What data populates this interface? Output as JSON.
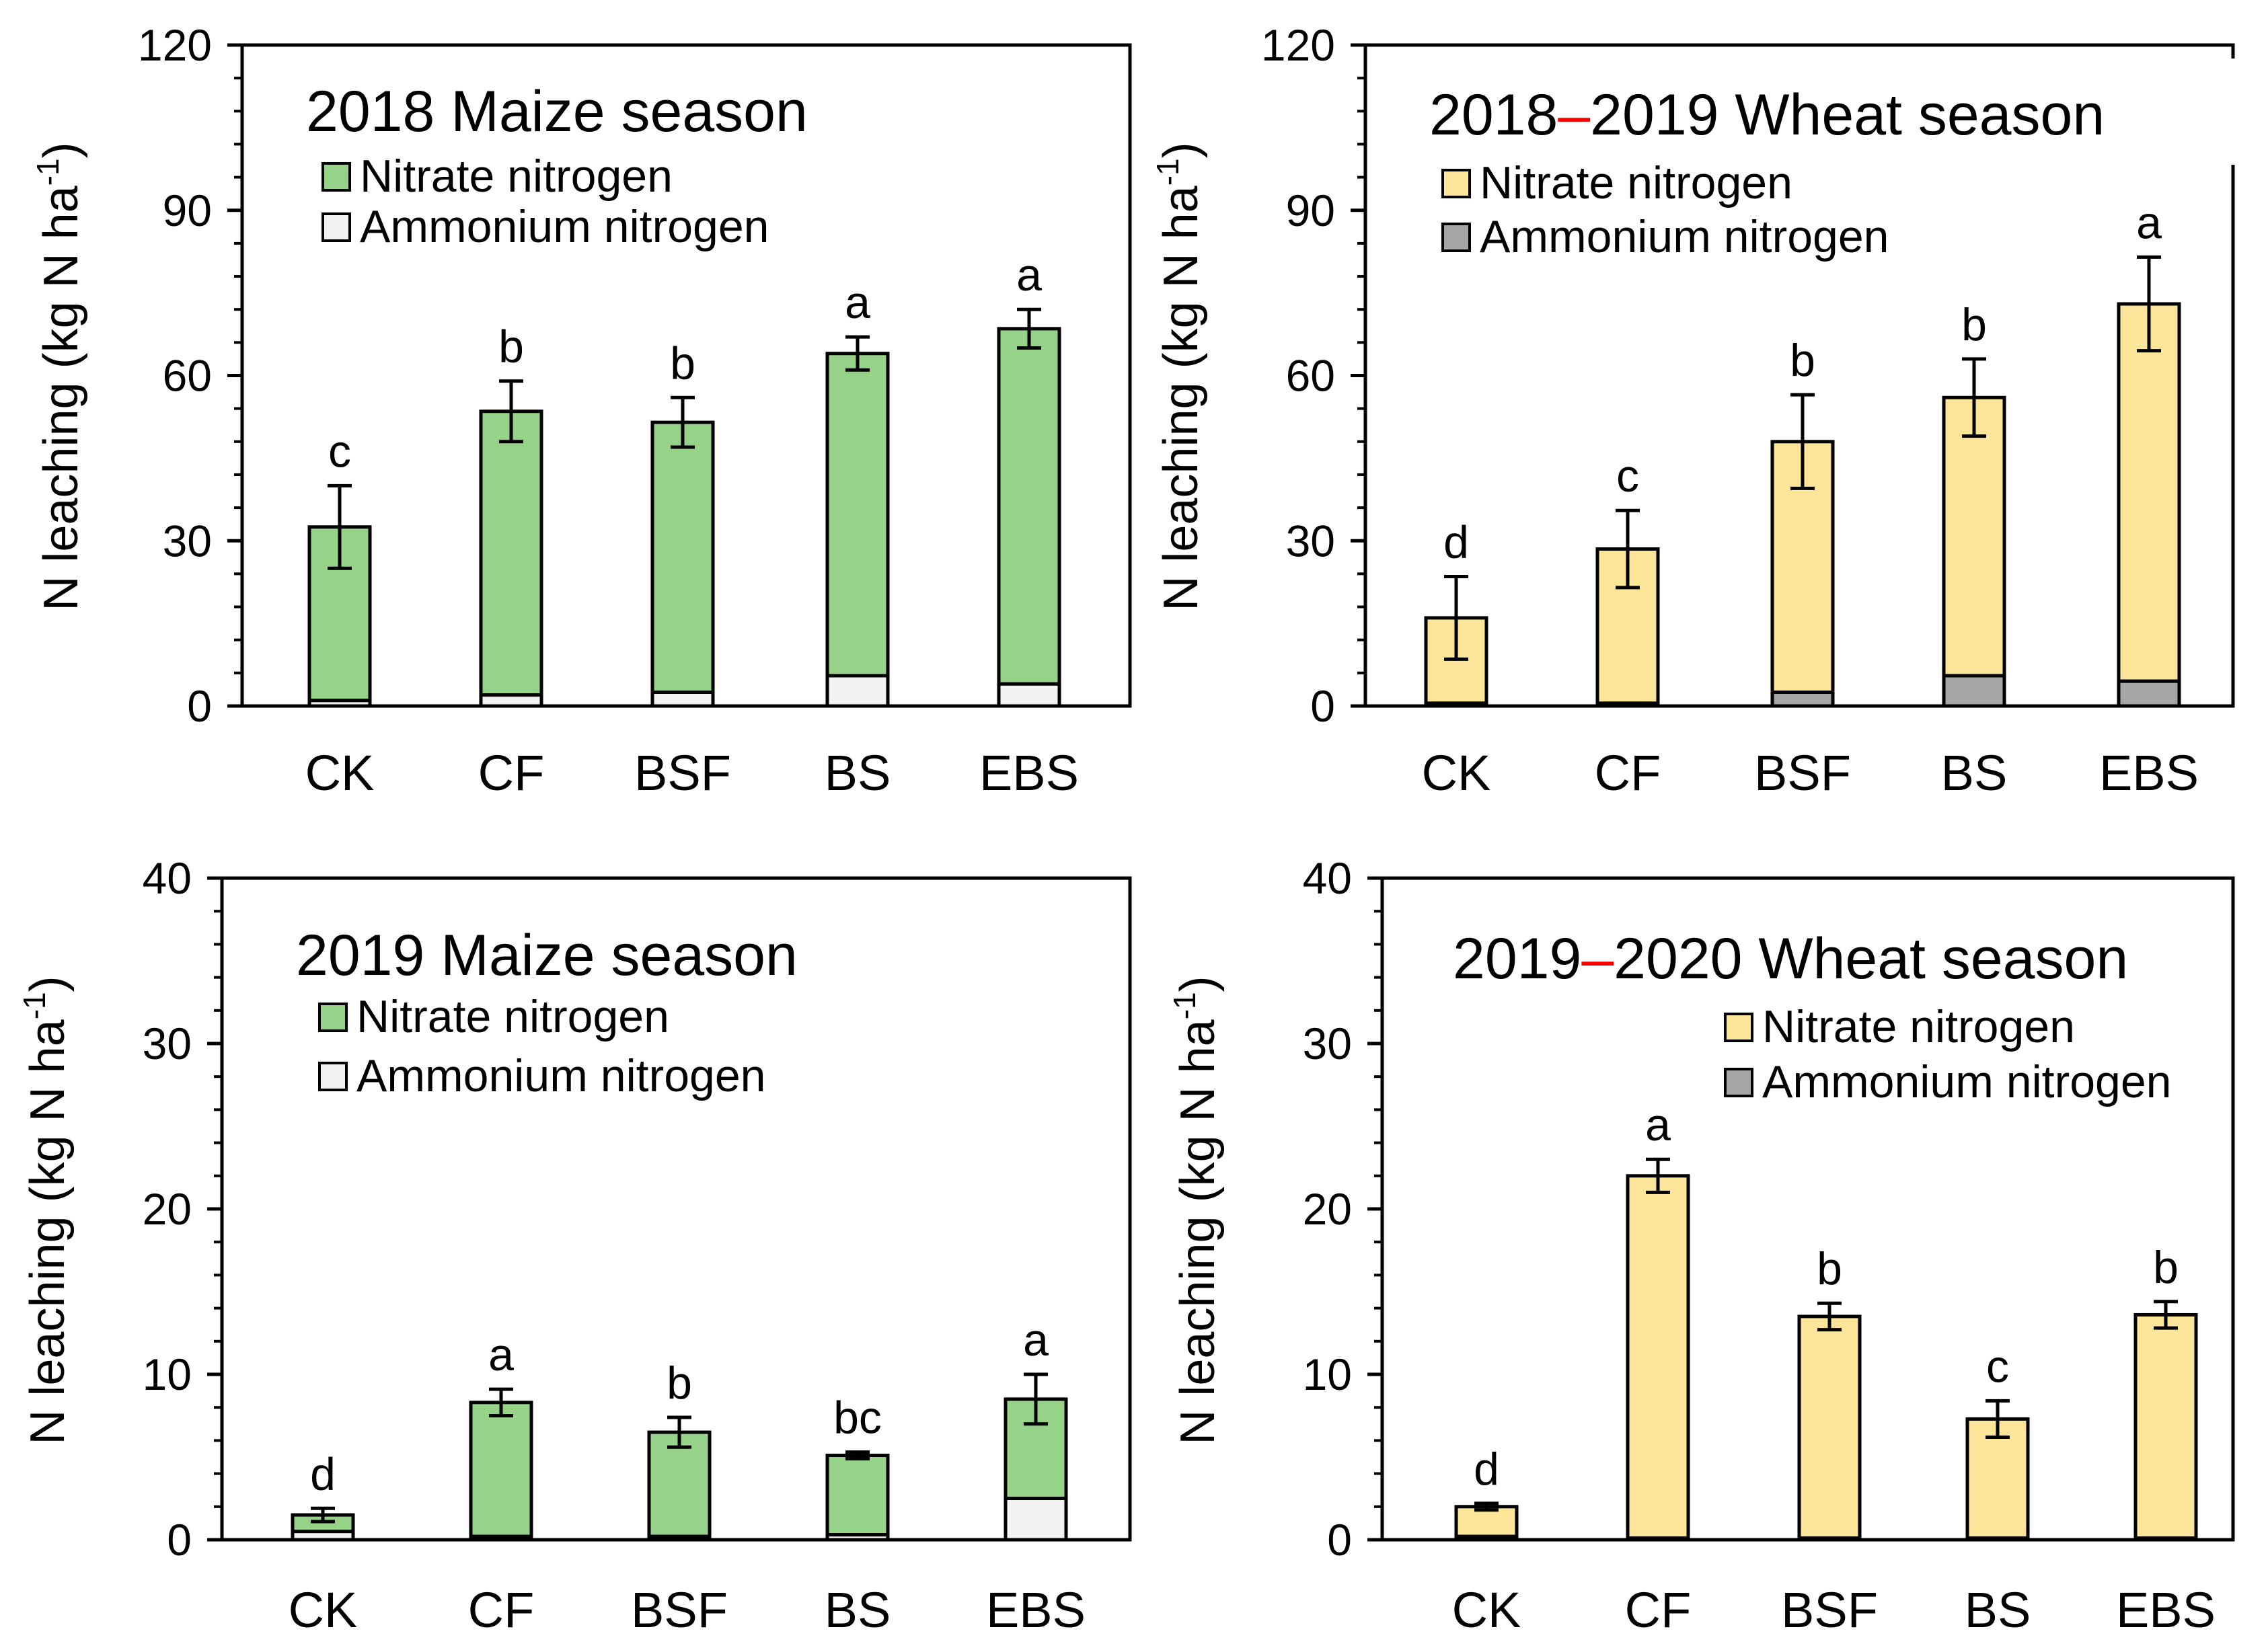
{
  "figure": {
    "colors": {
      "maize_nitrate": "#96d388",
      "maize_ammonium": "#f2f2f2",
      "wheat_nitrate": "#fde699",
      "wheat_ammonium": "#a6a6a6",
      "dash": "#ff0000"
    }
  },
  "chart_data": [
    {
      "type": "bar",
      "stacked": true,
      "title": "2018 Maize season",
      "title_parts": [
        "2018 Maize season"
      ],
      "ylabel": "N leaching (kg N ha",
      "ylabel_sup": "-1",
      "ylabel_close": ")",
      "ylim": [
        0,
        120
      ],
      "yticks": [
        "0",
        "30",
        "60",
        "90",
        "120"
      ],
      "categories": [
        "CK",
        "CF",
        "BSF",
        "BS",
        "EBS"
      ],
      "legend": [
        "Nitrate nitrogen",
        "Ammonium nitrogen"
      ],
      "series": [
        {
          "name": "Ammonium nitrogen",
          "values": [
            1.0,
            2.0,
            2.5,
            5.5,
            4.0
          ]
        },
        {
          "name": "Nitrate nitrogen",
          "values": [
            31.5,
            51.5,
            49.0,
            58.5,
            64.5
          ]
        }
      ],
      "totals": [
        32.5,
        53.5,
        51.5,
        64.0,
        68.5
      ],
      "errors": [
        7.5,
        5.5,
        4.5,
        3.0,
        3.5
      ],
      "significance": [
        "c",
        "b",
        "b",
        "a",
        "a"
      ]
    },
    {
      "type": "bar",
      "stacked": true,
      "title": "2018–2019 Wheat season",
      "title_parts": [
        "2018",
        "–",
        "2019 Wheat season"
      ],
      "ylabel": "N leaching (kg N ha",
      "ylabel_sup": "-1",
      "ylabel_close": ")",
      "ylim": [
        0,
        120
      ],
      "yticks": [
        "0",
        "30",
        "60",
        "90",
        "120"
      ],
      "categories": [
        "CK",
        "CF",
        "BSF",
        "BS",
        "EBS"
      ],
      "legend": [
        "Nitrate nitrogen",
        "Ammonium nitrogen"
      ],
      "series": [
        {
          "name": "Ammonium nitrogen",
          "values": [
            0.5,
            0.5,
            2.5,
            5.5,
            4.5
          ]
        },
        {
          "name": "Nitrate nitrogen",
          "values": [
            15.5,
            28.0,
            45.5,
            50.5,
            68.5
          ]
        }
      ],
      "totals": [
        16.0,
        28.5,
        48.0,
        56.0,
        73.0
      ],
      "errors": [
        7.5,
        7.0,
        8.5,
        7.0,
        8.5
      ],
      "significance": [
        "d",
        "c",
        "b",
        "b",
        "a"
      ]
    },
    {
      "type": "bar",
      "stacked": true,
      "title": "2019 Maize season",
      "title_parts": [
        "2019 Maize season"
      ],
      "ylabel": "N leaching (kg N ha",
      "ylabel_sup": "-1",
      "ylabel_close": ")",
      "ylim": [
        0,
        40
      ],
      "yticks": [
        "0",
        "10",
        "20",
        "30",
        "40"
      ],
      "categories": [
        "CK",
        "CF",
        "BSF",
        "BS",
        "EBS"
      ],
      "legend": [
        "Nitrate nitrogen",
        "Ammonium nitrogen"
      ],
      "series": [
        {
          "name": "Ammonium nitrogen",
          "values": [
            0.5,
            0.2,
            0.2,
            0.3,
            2.5
          ]
        },
        {
          "name": "Nitrate nitrogen",
          "values": [
            1.0,
            8.1,
            6.3,
            4.8,
            6.0
          ]
        }
      ],
      "totals": [
        1.5,
        8.3,
        6.5,
        5.1,
        8.5
      ],
      "errors": [
        0.4,
        0.8,
        0.9,
        0.2,
        1.5
      ],
      "significance": [
        "d",
        "a",
        "b",
        "bc",
        "a"
      ]
    },
    {
      "type": "bar",
      "stacked": true,
      "title": "2019–2020 Wheat season",
      "title_parts": [
        "2019",
        "–",
        "2020 Wheat season"
      ],
      "ylabel": "N leaching (kg N ha",
      "ylabel_sup": "-1",
      "ylabel_close": ")",
      "ylim": [
        0,
        40
      ],
      "yticks": [
        "0",
        "10",
        "20",
        "30",
        "40"
      ],
      "categories": [
        "CK",
        "CF",
        "BSF",
        "BS",
        "EBS"
      ],
      "legend": [
        "Nitrate nitrogen",
        "Ammonium nitrogen"
      ],
      "series": [
        {
          "name": "Ammonium nitrogen",
          "values": [
            0.2,
            0.1,
            0.1,
            0.1,
            0.1
          ]
        },
        {
          "name": "Nitrate nitrogen",
          "values": [
            1.8,
            21.9,
            13.4,
            7.2,
            13.5
          ]
        }
      ],
      "totals": [
        2.0,
        22.0,
        13.5,
        7.3,
        13.6
      ],
      "errors": [
        0.2,
        1.0,
        0.8,
        1.1,
        0.8
      ],
      "significance": [
        "d",
        "a",
        "b",
        "c",
        "b"
      ]
    }
  ]
}
